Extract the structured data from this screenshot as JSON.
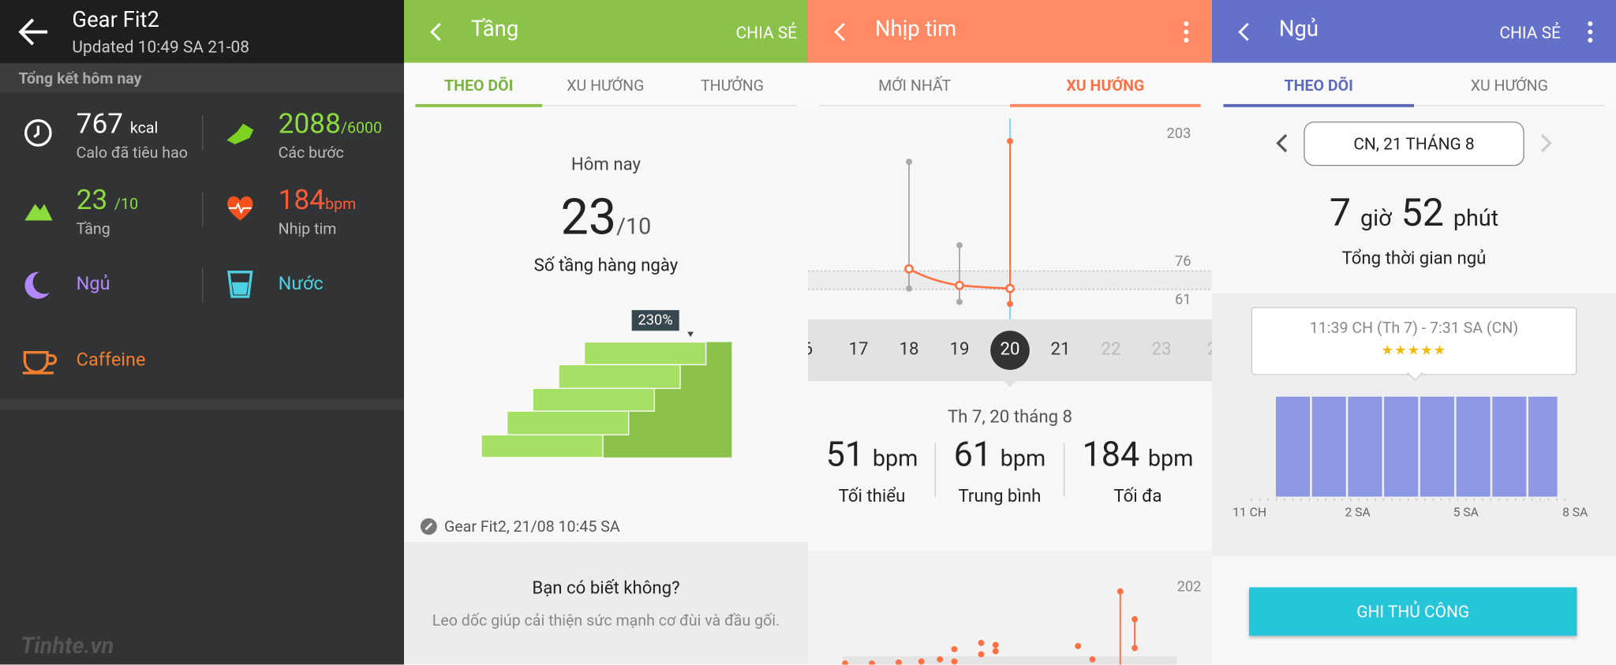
{
  "panels": [
    {
      "title": "Gear Fit2",
      "subtitle": "Updated 10:49 SA 21-08",
      "section": "Tổng kết hôm nay",
      "items": [
        {
          "value": 767,
          "unit": "kcal",
          "label": "Calo đã tiêu hao"
        },
        {
          "value": 2088,
          "unit": "/6000",
          "label": "Các bước"
        },
        {
          "value": 23,
          "unit": "/10",
          "label": "Tầng"
        },
        {
          "value": 184,
          "unit": "bpm",
          "label": "Nhịp tim"
        },
        {
          "label": "Ngủ"
        },
        {
          "label": "Nước"
        },
        {
          "label": "Caffeine"
        }
      ]
    },
    {
      "title": "Tầng",
      "action": "CHIA SẺ",
      "tabs": [
        "THEO DÕI",
        "XU HƯỚNG",
        "THƯỞNG"
      ],
      "label": "Hôm nay",
      "value": 23,
      "goal": "/10",
      "caption": "Số tầng hàng ngày",
      "badge": "230%",
      "source": "Gear Fit2, 21/08 10:45 SA",
      "tip_title": "Bạn có biết không?",
      "tip_text": "Leo dốc giúp cải thiện sức mạnh cơ đùi và đầu gối."
    },
    {
      "title": "Nhịp tim",
      "tabs": [
        "MỚI NHẤT",
        "XU HƯỚNG"
      ],
      "axis": [
        203,
        76,
        61
      ],
      "days": [
        "6",
        "17",
        "18",
        "19",
        "20",
        "21",
        "22",
        "23",
        "2"
      ],
      "date": "Th 7, 20 tháng 8",
      "stats": [
        {
          "value": 51,
          "unit": "bpm",
          "label": "Tối thiểu"
        },
        {
          "value": 61,
          "unit": "bpm",
          "label": "Trung bình"
        },
        {
          "value": 184,
          "unit": "bpm",
          "label": "Tối đa"
        }
      ],
      "lower_axis": 202
    },
    {
      "title": "Ngủ",
      "action": "CHIA SẺ",
      "tabs": [
        "THEO DÕI",
        "XU HƯỚNG"
      ],
      "date": "CN, 21 THÁNG 8",
      "hours": 7,
      "hours_unit": "giờ",
      "minutes": 52,
      "minutes_unit": "phút",
      "caption": "Tổng thời gian ngủ",
      "range": "11:39 CH (Th 7) - 7:31 SA (CN)",
      "axis": [
        "11 CH",
        "2 SA",
        "5 SA",
        "8 SA"
      ],
      "button": "GHI THỦ CÔNG"
    }
  ],
  "watermark": "Tinhte.vn"
}
